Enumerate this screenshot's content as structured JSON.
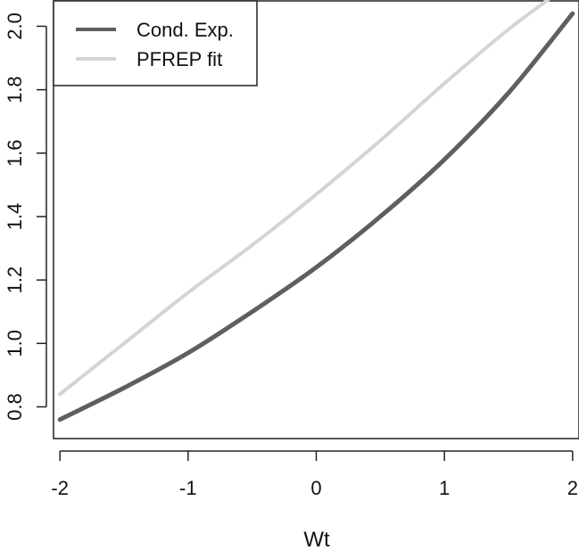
{
  "chart_data": {
    "type": "line",
    "title": "",
    "xlabel": "Wt",
    "ylabel": "",
    "xlim": [
      -2.05,
      2.05
    ],
    "ylim": [
      0.7,
      2.08
    ],
    "xticks": [
      "-2",
      "-1",
      "0",
      "1",
      "2"
    ],
    "yticks": [
      "0.8",
      "1.0",
      "1.2",
      "1.4",
      "1.6",
      "1.8",
      "2.0"
    ],
    "grid": false,
    "legend_position": "top-left",
    "series": [
      {
        "name": "Cond. Exp.",
        "color": "#5f5f5f",
        "x": [
          -2.0,
          -1.5,
          -1.0,
          -0.5,
          0.0,
          0.5,
          1.0,
          1.5,
          2.0
        ],
        "y": [
          0.76,
          0.86,
          0.97,
          1.1,
          1.24,
          1.4,
          1.58,
          1.79,
          2.04
        ]
      },
      {
        "name": "PFREP fit",
        "color": "#d4d4d4",
        "x": [
          -2.0,
          -1.5,
          -1.0,
          -0.5,
          0.0,
          0.5,
          1.0,
          1.5,
          1.83
        ],
        "y": [
          0.84,
          1.0,
          1.16,
          1.31,
          1.47,
          1.64,
          1.82,
          1.99,
          2.09
        ]
      }
    ]
  }
}
